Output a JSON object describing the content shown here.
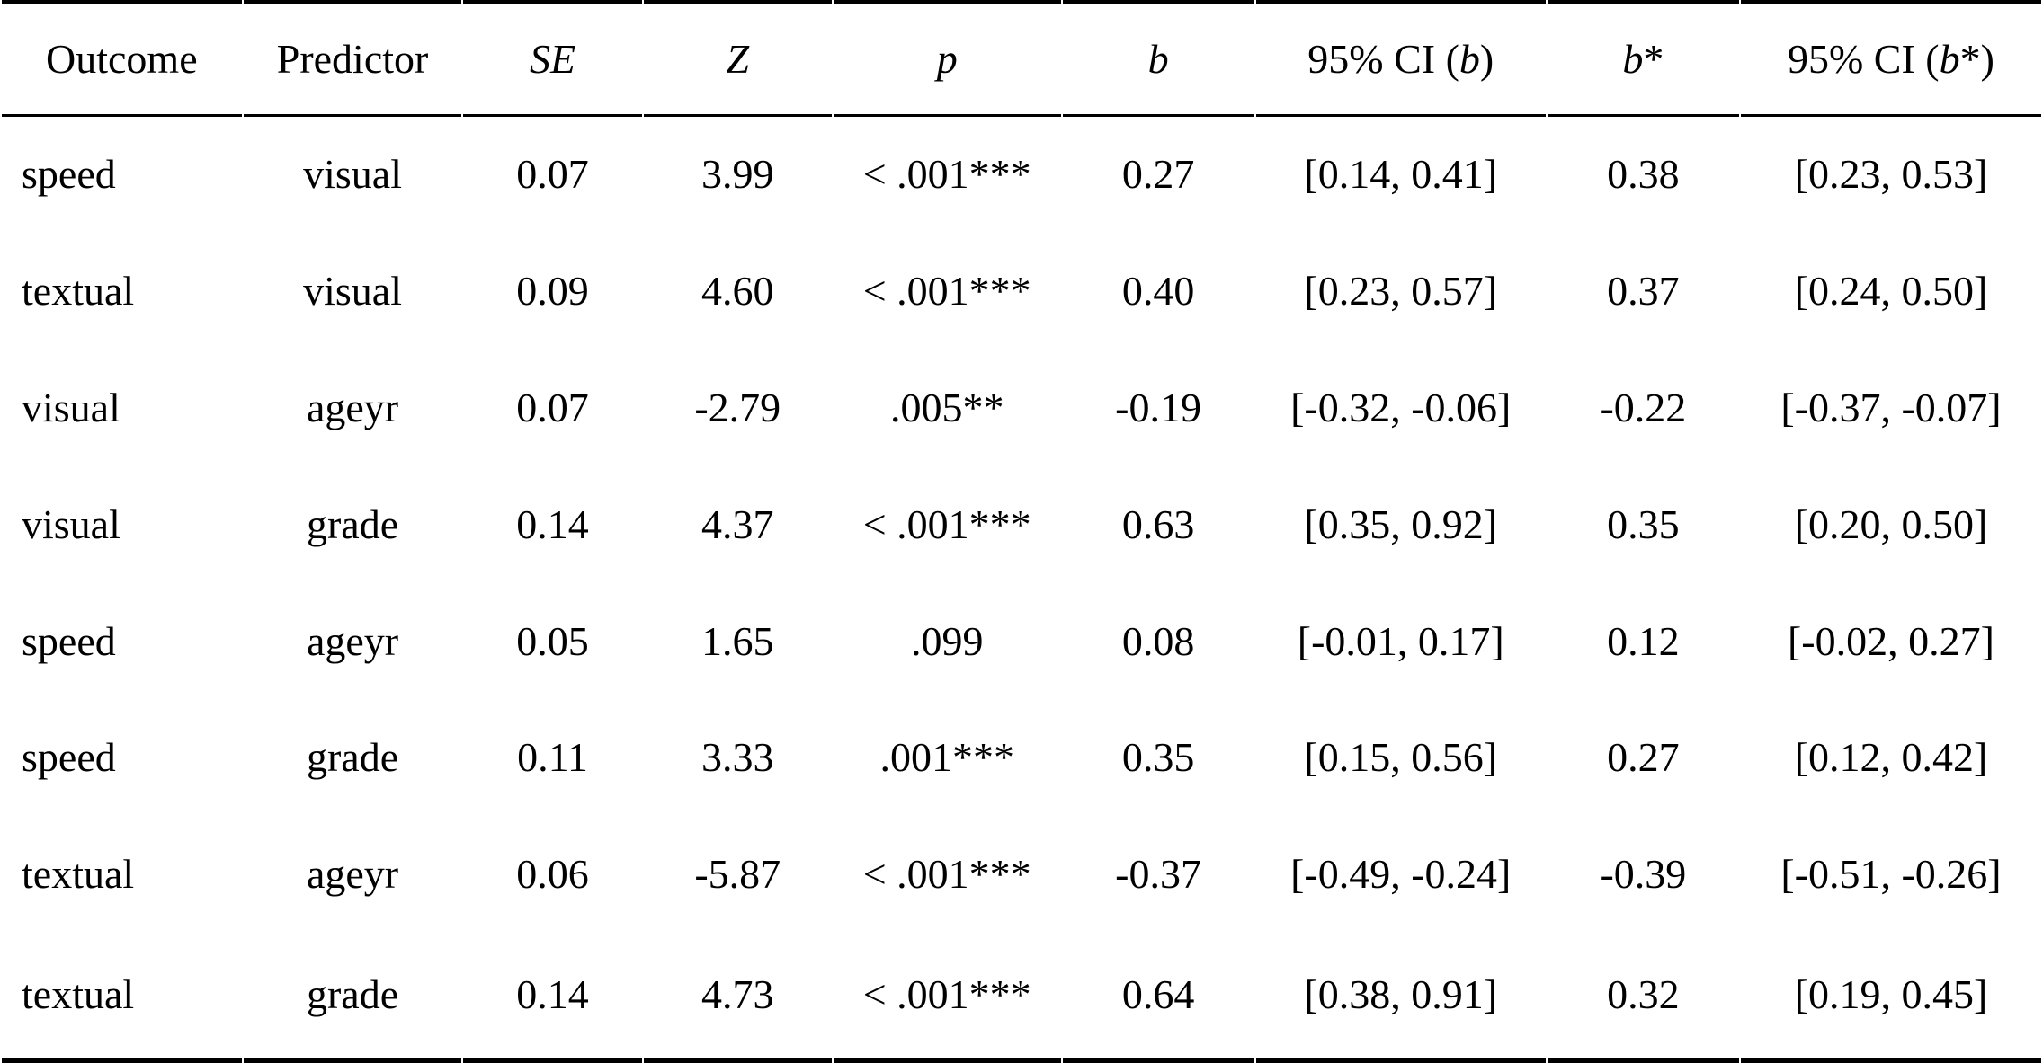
{
  "table": {
    "columns": [
      {
        "key": "outcome",
        "header": [
          {
            "text": "Outcome",
            "italic": false
          }
        ]
      },
      {
        "key": "predictor",
        "header": [
          {
            "text": "Predictor",
            "italic": false
          }
        ]
      },
      {
        "key": "se",
        "header": [
          {
            "text": "SE",
            "italic": true
          }
        ]
      },
      {
        "key": "z",
        "header": [
          {
            "text": "Z",
            "italic": true
          }
        ]
      },
      {
        "key": "p",
        "header": [
          {
            "text": "p",
            "italic": true
          }
        ]
      },
      {
        "key": "b",
        "header": [
          {
            "text": "b",
            "italic": true
          }
        ]
      },
      {
        "key": "ci_b",
        "header": [
          {
            "text": "95% CI (",
            "italic": false
          },
          {
            "text": "b",
            "italic": true
          },
          {
            "text": ")",
            "italic": false
          }
        ]
      },
      {
        "key": "b_star",
        "header": [
          {
            "text": "b",
            "italic": true
          },
          {
            "text": "*",
            "italic": false
          }
        ]
      },
      {
        "key": "ci_b_star",
        "header": [
          {
            "text": "95% CI (",
            "italic": false
          },
          {
            "text": "b",
            "italic": true
          },
          {
            "text": "*)",
            "italic": false
          }
        ]
      }
    ],
    "rows": [
      [
        "speed",
        "visual",
        "0.07",
        "3.99",
        "< .001***",
        "0.27",
        "[0.14, 0.41]",
        "0.38",
        "[0.23, 0.53]"
      ],
      [
        "textual",
        "visual",
        "0.09",
        "4.60",
        "< .001***",
        "0.40",
        "[0.23, 0.57]",
        "0.37",
        "[0.24, 0.50]"
      ],
      [
        "visual",
        "ageyr",
        "0.07",
        "-2.79",
        ".005**",
        "-0.19",
        "[-0.32, -0.06]",
        "-0.22",
        "[-0.37, -0.07]"
      ],
      [
        "visual",
        "grade",
        "0.14",
        "4.37",
        "< .001***",
        "0.63",
        "[0.35, 0.92]",
        "0.35",
        "[0.20, 0.50]"
      ],
      [
        "speed",
        "ageyr",
        "0.05",
        "1.65",
        ".099",
        "0.08",
        "[-0.01, 0.17]",
        "0.12",
        "[-0.02, 0.27]"
      ],
      [
        "speed",
        "grade",
        "0.11",
        "3.33",
        ".001***",
        "0.35",
        "[0.15, 0.56]",
        "0.27",
        "[0.12, 0.42]"
      ],
      [
        "textual",
        "ageyr",
        "0.06",
        "-5.87",
        "< .001***",
        "-0.37",
        "[-0.49, -0.24]",
        "-0.39",
        "[-0.51, -0.26]"
      ],
      [
        "textual",
        "grade",
        "0.14",
        "4.73",
        "< .001***",
        "0.64",
        "[0.38, 0.91]",
        "0.32",
        "[0.19, 0.45]"
      ]
    ]
  },
  "colors": {
    "text": "#000000",
    "rule": "#000000",
    "background": "#ffffff"
  }
}
